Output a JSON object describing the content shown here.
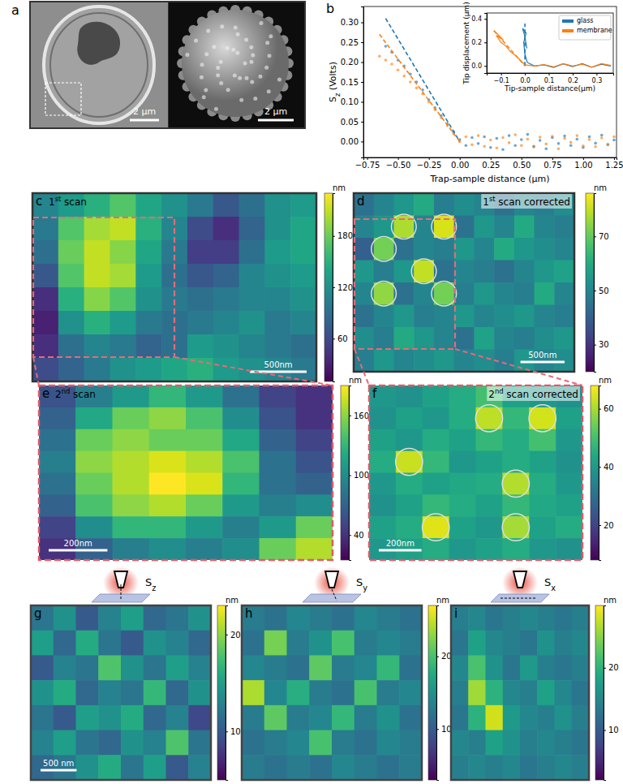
{
  "panel_a": {
    "label": "a",
    "scale_bars": [
      "2 µm",
      "2 µm"
    ]
  },
  "chart_data": [
    {
      "type": "scatter",
      "label": "b",
      "x_label": "Trap-sample distance (µm)",
      "y_label": {
        "main": "S",
        "sub": "z",
        "rest": " (Volts)"
      },
      "xlim": [
        -0.78,
        1.27
      ],
      "ylim": [
        -0.04,
        0.34
      ],
      "xticks": [
        {
          "value": -0.75,
          "label": "−0.75"
        },
        {
          "value": -0.5,
          "label": "−0.50"
        },
        {
          "value": -0.25,
          "label": "−0.25"
        },
        {
          "value": 0,
          "label": "0.00"
        },
        {
          "value": 0.25,
          "label": "0.25"
        },
        {
          "value": 0.5,
          "label": "0.50"
        },
        {
          "value": 0.75,
          "label": "0.75"
        },
        {
          "value": 1,
          "label": "1.00"
        },
        {
          "value": 1.25,
          "label": "1.25"
        }
      ],
      "yticks": [
        {
          "value": 0,
          "label": "0.00"
        },
        {
          "value": 0.05,
          "label": "0.05"
        },
        {
          "value": 0.1,
          "label": "0.10"
        },
        {
          "value": 0.15,
          "label": "0.15"
        },
        {
          "value": 0.2,
          "label": "0.20"
        },
        {
          "value": 0.25,
          "label": "0.25"
        },
        {
          "value": 0.3,
          "label": "0.30"
        }
      ],
      "series": [
        {
          "color": "#1f77b4",
          "marker": "circle",
          "x": [
            -0.6,
            -0.55,
            -0.5,
            -0.45,
            -0.4,
            -0.35,
            -0.3,
            -0.25,
            -0.2,
            -0.15,
            -0.1,
            -0.05,
            0,
            0.05,
            0.1,
            0.15,
            0.2,
            0.25,
            0.3,
            0.35,
            0.4,
            0.45,
            0.5,
            0.55,
            0.6,
            0.65,
            0.7,
            0.75,
            0.8,
            0.85,
            0.9,
            0.95,
            1.0,
            1.05,
            1.1,
            1.15,
            1.2,
            1.25
          ],
          "values": [
            0.24,
            0.225,
            0.205,
            0.19,
            0.17,
            0.15,
            0.13,
            0.105,
            0.085,
            0.065,
            0.045,
            0.025,
            0.005,
            -0.01,
            0.01,
            -0.005,
            0.012,
            -0.015,
            0.008,
            -0.02,
            0.015,
            -0.01,
            0.005,
            0.018,
            -0.012,
            0.003,
            -0.018,
            0.01,
            -0.005,
            0.014,
            -0.01,
            0.006,
            -0.015,
            0.012,
            -0.004,
            0.016,
            -0.008,
            0.004
          ]
        },
        {
          "color": "#ff7f0e",
          "marker": "circle",
          "x": [
            -0.65,
            -0.6,
            -0.55,
            -0.5,
            -0.45,
            -0.4,
            -0.35,
            -0.3,
            -0.25,
            -0.2,
            -0.15,
            -0.1,
            -0.05,
            0,
            0.05,
            0.1,
            0.15,
            0.2,
            0.25,
            0.3,
            0.35,
            0.4,
            0.45,
            0.5,
            0.55,
            0.6,
            0.65,
            0.7,
            0.75,
            0.8,
            0.85,
            0.9,
            0.95,
            1.0,
            1.05,
            1.1,
            1.15,
            1.2,
            1.25
          ],
          "values": [
            0.215,
            0.205,
            0.195,
            0.18,
            0.165,
            0.15,
            0.135,
            0.12,
            0.1,
            0.08,
            0.06,
            0.04,
            0.02,
            0.0,
            0.012,
            -0.008,
            0.015,
            -0.012,
            0.004,
            -0.016,
            0.01,
            -0.003,
            0.017,
            -0.01,
            0.006,
            -0.014,
            0.011,
            -0.006,
            0.013,
            -0.018,
            0.008,
            -0.002,
            0.015,
            -0.011,
            0.005,
            -0.013,
            0.009,
            -0.007,
            0.012
          ]
        },
        {
          "type": "line",
          "line_style": "dashed",
          "color": "#1f77b4",
          "x": [
            -0.6,
            0
          ],
          "values": [
            0.31,
            0
          ]
        },
        {
          "type": "line",
          "line_style": "dashed",
          "color": "#ff7f0e",
          "x": [
            -0.65,
            0
          ],
          "values": [
            0.27,
            0
          ]
        }
      ]
    },
    {
      "type": "line",
      "x_label": "Tip-sample distance(µm)",
      "y_label": "Tip displacement (µm)",
      "legend": "upper right",
      "xlim": [
        -0.16,
        0.37
      ],
      "ylim": [
        -0.06,
        0.45
      ],
      "xticks": [
        {
          "value": -0.1,
          "label": "−0.1"
        },
        {
          "value": 0,
          "label": "0.0"
        },
        {
          "value": 0.1,
          "label": "0.1"
        },
        {
          "value": 0.2,
          "label": "0.2"
        },
        {
          "value": 0.3,
          "label": "0.3"
        }
      ],
      "yticks": [
        {
          "value": 0,
          "label": "0.0"
        },
        {
          "value": 0.2,
          "label": "0.2"
        },
        {
          "value": 0.4,
          "label": "0.4"
        }
      ],
      "series": [
        {
          "name": "glass",
          "color": "#1f77b4",
          "x": [
            0.36,
            0.32,
            0.28,
            0.24,
            0.2,
            0.16,
            0.12,
            0.08,
            0.04,
            0.01,
            0.0,
            -0.005,
            0.005,
            -0.01,
            0.0,
            0.008
          ],
          "values": [
            0.0,
            0.015,
            -0.01,
            0.02,
            -0.005,
            0.018,
            -0.012,
            0.01,
            0.0,
            0.03,
            0.1,
            0.2,
            0.28,
            0.32,
            0.25,
            0.15
          ]
        },
        {
          "name": "membrane",
          "color": "#ff7f0e",
          "x": [
            0.36,
            0.32,
            0.28,
            0.24,
            0.2,
            0.16,
            0.12,
            0.08,
            0.04,
            0.0,
            -0.02,
            -0.04,
            -0.06,
            -0.08,
            -0.1,
            -0.12,
            -0.09,
            -0.13
          ],
          "values": [
            0.005,
            0.02,
            -0.01,
            0.015,
            0.0,
            0.02,
            -0.008,
            0.012,
            0.0,
            0.01,
            0.05,
            0.09,
            0.12,
            0.17,
            0.2,
            0.26,
            0.22,
            0.3
          ]
        },
        {
          "line_style": "dashed",
          "color": "#1f77b4",
          "x": [
            0,
            0
          ],
          "values": [
            0,
            0.36
          ]
        },
        {
          "line_style": "dashed",
          "color": "#ff7f0e",
          "x": [
            -0.13,
            0
          ],
          "values": [
            0.3,
            0
          ]
        }
      ]
    },
    {
      "type": "heatmap",
      "label": "c",
      "panel_title": {
        "main": "1",
        "sup": "st",
        "rest": " scan"
      },
      "scale_bar": "500nm",
      "color": "viridis",
      "colorbar_label": "nm",
      "colorbar_range": [
        10,
        230
      ],
      "colorbar_ticks": [
        60,
        120,
        180
      ],
      "cells": [
        [
          110,
          130,
          150,
          170,
          140,
          120,
          100,
          70,
          90,
          120,
          130
        ],
        [
          100,
          170,
          200,
          210,
          150,
          110,
          60,
          40,
          80,
          120,
          140
        ],
        [
          90,
          180,
          210,
          190,
          140,
          100,
          50,
          50,
          90,
          130,
          140
        ],
        [
          70,
          170,
          210,
          200,
          130,
          90,
          70,
          80,
          110,
          120,
          130
        ],
        [
          40,
          150,
          190,
          170,
          120,
          100,
          90,
          100,
          110,
          110,
          120
        ],
        [
          30,
          120,
          150,
          130,
          100,
          90,
          100,
          110,
          120,
          100,
          110
        ],
        [
          40,
          90,
          110,
          100,
          80,
          90,
          130,
          120,
          110,
          100,
          90
        ],
        [
          60,
          80,
          100,
          120,
          130,
          140,
          150,
          130,
          120,
          110,
          100
        ]
      ]
    },
    {
      "type": "heatmap",
      "label": "d",
      "panel_title": {
        "main": "1",
        "sup": "st",
        "rest": " scan corrected"
      },
      "scale_bar": "500nm",
      "color": "viridis",
      "colorbar_label": "nm",
      "colorbar_range": [
        20,
        86
      ],
      "colorbar_ticks": [
        30,
        50,
        70
      ],
      "cells": [
        [
          45,
          50,
          55,
          60,
          48,
          52,
          50,
          45,
          50,
          48,
          52
        ],
        [
          50,
          55,
          78,
          50,
          82,
          45,
          55,
          50,
          60,
          50,
          48
        ],
        [
          40,
          72,
          45,
          50,
          48,
          55,
          50,
          60,
          55,
          52,
          50
        ],
        [
          55,
          48,
          55,
          80,
          45,
          50,
          48,
          45,
          50,
          55,
          58
        ],
        [
          50,
          75,
          45,
          50,
          72,
          48,
          55,
          50,
          48,
          60,
          50
        ],
        [
          45,
          50,
          55,
          48,
          50,
          55,
          50,
          52,
          55,
          50,
          48
        ],
        [
          52,
          48,
          60,
          55,
          50,
          45,
          58,
          50,
          48,
          52,
          55
        ],
        [
          48,
          55,
          50,
          52,
          55,
          50,
          52,
          48,
          55,
          50,
          52
        ]
      ]
    },
    {
      "type": "heatmap",
      "label": "e",
      "panel_title": {
        "main": "2",
        "sup": "nd",
        "rest": " scan"
      },
      "scale_bar": "200nm",
      "color": "viridis",
      "colorbar_label": "nm",
      "colorbar_range": [
        15,
        190
      ],
      "colorbar_ticks": [
        40,
        100,
        160
      ],
      "cells": [
        [
          60,
          90,
          110,
          130,
          110,
          80,
          50,
          40
        ],
        [
          70,
          120,
          150,
          160,
          140,
          100,
          60,
          40
        ],
        [
          80,
          150,
          160,
          150,
          150,
          120,
          70,
          50
        ],
        [
          90,
          160,
          170,
          180,
          170,
          140,
          80,
          60
        ],
        [
          80,
          150,
          170,
          190,
          180,
          130,
          80,
          70
        ],
        [
          70,
          140,
          160,
          170,
          150,
          110,
          90,
          100
        ],
        [
          50,
          100,
          130,
          130,
          110,
          90,
          110,
          150
        ],
        [
          40,
          70,
          90,
          100,
          90,
          100,
          150,
          170
        ]
      ]
    },
    {
      "type": "heatmap",
      "label": "f",
      "panel_title": {
        "main": "2",
        "sup": "nd",
        "rest": " scan corrected"
      },
      "scale_bar": "200nm",
      "color": "viridis",
      "colorbar_label": "nm",
      "colorbar_range": [
        8,
        68
      ],
      "colorbar_ticks": [
        20,
        40,
        60
      ],
      "cells": [
        [
          40,
          38,
          42,
          45,
          50,
          42,
          40,
          38
        ],
        [
          38,
          42,
          40,
          45,
          62,
          48,
          64,
          42
        ],
        [
          42,
          40,
          45,
          42,
          48,
          45,
          50,
          40
        ],
        [
          45,
          63,
          48,
          40,
          42,
          45,
          42,
          38
        ],
        [
          40,
          45,
          42,
          44,
          45,
          61,
          45,
          40
        ],
        [
          38,
          42,
          48,
          45,
          42,
          48,
          44,
          42
        ],
        [
          42,
          45,
          65,
          42,
          40,
          60,
          42,
          45
        ],
        [
          40,
          42,
          45,
          40,
          42,
          45,
          40,
          38
        ]
      ]
    },
    {
      "type": "heatmap",
      "label": "g",
      "probe_label": {
        "main": "S",
        "sub": "z"
      },
      "scale_bar": "500 nm",
      "color": "viridis",
      "colorbar_label": "nm",
      "colorbar_range": [
        5,
        23
      ],
      "colorbar_ticks": [
        10,
        20
      ],
      "cells": [
        [
          12,
          14,
          10,
          13,
          15,
          11,
          12,
          14
        ],
        [
          15,
          11,
          16,
          12,
          10,
          14,
          13,
          11
        ],
        [
          10,
          13,
          12,
          18,
          14,
          12,
          15,
          13
        ],
        [
          14,
          16,
          11,
          13,
          12,
          17,
          11,
          14
        ],
        [
          12,
          10,
          15,
          14,
          16,
          11,
          13,
          9
        ],
        [
          13,
          15,
          12,
          11,
          14,
          13,
          18,
          12
        ],
        [
          11,
          12,
          14,
          16,
          12,
          15,
          10,
          13
        ]
      ]
    },
    {
      "type": "heatmap",
      "label": "h",
      "probe_label": {
        "main": "S",
        "sub": "y"
      },
      "color": "viridis",
      "colorbar_label": "nm",
      "colorbar_range": [
        3,
        27
      ],
      "colorbar_ticks": [
        10,
        20
      ],
      "cells": [
        [
          13,
          12,
          14,
          13,
          12,
          14,
          13,
          12
        ],
        [
          12,
          22,
          13,
          15,
          20,
          13,
          14,
          13
        ],
        [
          14,
          13,
          12,
          21,
          13,
          14,
          19,
          12
        ],
        [
          24,
          14,
          18,
          13,
          12,
          20,
          13,
          14
        ],
        [
          13,
          21,
          13,
          14,
          19,
          13,
          15,
          12
        ],
        [
          12,
          13,
          14,
          20,
          13,
          12,
          14,
          13
        ],
        [
          13,
          12,
          13,
          12,
          14,
          13,
          12,
          13
        ]
      ]
    },
    {
      "type": "heatmap",
      "label": "i",
      "probe_label": {
        "main": "S",
        "sub": "x"
      },
      "color": "viridis",
      "colorbar_label": "nm",
      "colorbar_range": [
        2,
        30
      ],
      "colorbar_ticks": [
        10,
        20
      ],
      "cells": [
        [
          14,
          15,
          13,
          14,
          15,
          14,
          13,
          14
        ],
        [
          13,
          18,
          15,
          14,
          13,
          16,
          14,
          15
        ],
        [
          15,
          22,
          16,
          13,
          17,
          14,
          13,
          14
        ],
        [
          14,
          26,
          20,
          15,
          14,
          18,
          15,
          13
        ],
        [
          13,
          20,
          28,
          17,
          15,
          14,
          16,
          14
        ],
        [
          15,
          14,
          18,
          16,
          14,
          15,
          14,
          13
        ],
        [
          14,
          15,
          14,
          15,
          13,
          14,
          15,
          14
        ]
      ]
    }
  ]
}
